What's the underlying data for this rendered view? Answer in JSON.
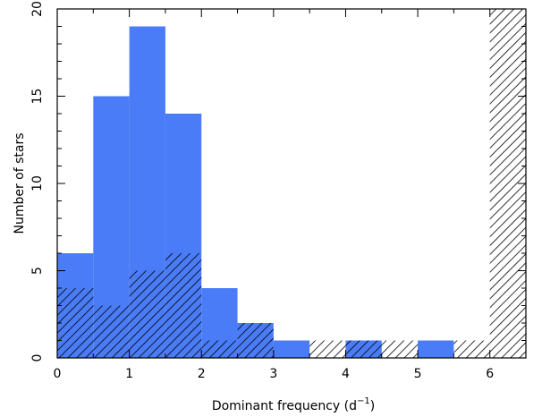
{
  "chart_data": {
    "type": "bar",
    "title": "",
    "xlabel": "Dominant frequency (d",
    "xlabel_superscript": "−1",
    "xlabel_suffix": ")",
    "ylabel": "Number of stars",
    "xlim": [
      0,
      6.5
    ],
    "ylim": [
      0,
      20
    ],
    "bin_width": 0.5,
    "x_ticks": [
      0,
      1,
      2,
      3,
      4,
      5,
      6
    ],
    "y_ticks": [
      0,
      5,
      10,
      15,
      20
    ],
    "grid": false,
    "legend": "none",
    "series": [
      {
        "style": "solid",
        "color": "#4a7cf7",
        "bins": [
          {
            "x0": 0.0,
            "x1": 0.5,
            "value": 6
          },
          {
            "x0": 0.5,
            "x1": 1.0,
            "value": 15
          },
          {
            "x0": 1.0,
            "x1": 1.5,
            "value": 19
          },
          {
            "x0": 1.5,
            "x1": 2.0,
            "value": 14
          },
          {
            "x0": 2.0,
            "x1": 2.5,
            "value": 4
          },
          {
            "x0": 2.5,
            "x1": 3.0,
            "value": 2
          },
          {
            "x0": 3.0,
            "x1": 3.5,
            "value": 1
          },
          {
            "x0": 3.5,
            "x1": 4.0,
            "value": 0
          },
          {
            "x0": 4.0,
            "x1": 4.5,
            "value": 1
          },
          {
            "x0": 4.5,
            "x1": 5.0,
            "value": 0
          },
          {
            "x0": 5.0,
            "x1": 5.5,
            "value": 1
          },
          {
            "x0": 5.5,
            "x1": 6.0,
            "value": 0
          }
        ]
      },
      {
        "style": "hatched",
        "color": "#000000",
        "bins": [
          {
            "x0": 0.0,
            "x1": 0.5,
            "value": 4
          },
          {
            "x0": 0.5,
            "x1": 1.0,
            "value": 3
          },
          {
            "x0": 1.0,
            "x1": 1.5,
            "value": 5
          },
          {
            "x0": 1.5,
            "x1": 2.0,
            "value": 6
          },
          {
            "x0": 2.0,
            "x1": 2.5,
            "value": 1
          },
          {
            "x0": 2.5,
            "x1": 3.0,
            "value": 2
          },
          {
            "x0": 3.0,
            "x1": 3.5,
            "value": 0
          },
          {
            "x0": 3.5,
            "x1": 4.0,
            "value": 1
          },
          {
            "x0": 4.0,
            "x1": 4.5,
            "value": 1
          },
          {
            "x0": 4.5,
            "x1": 5.0,
            "value": 1
          },
          {
            "x0": 5.0,
            "x1": 5.5,
            "value": 0
          },
          {
            "x0": 5.5,
            "x1": 6.0,
            "value": 1
          },
          {
            "x0": 6.0,
            "x1": 6.5,
            "value": 20
          }
        ]
      }
    ]
  }
}
